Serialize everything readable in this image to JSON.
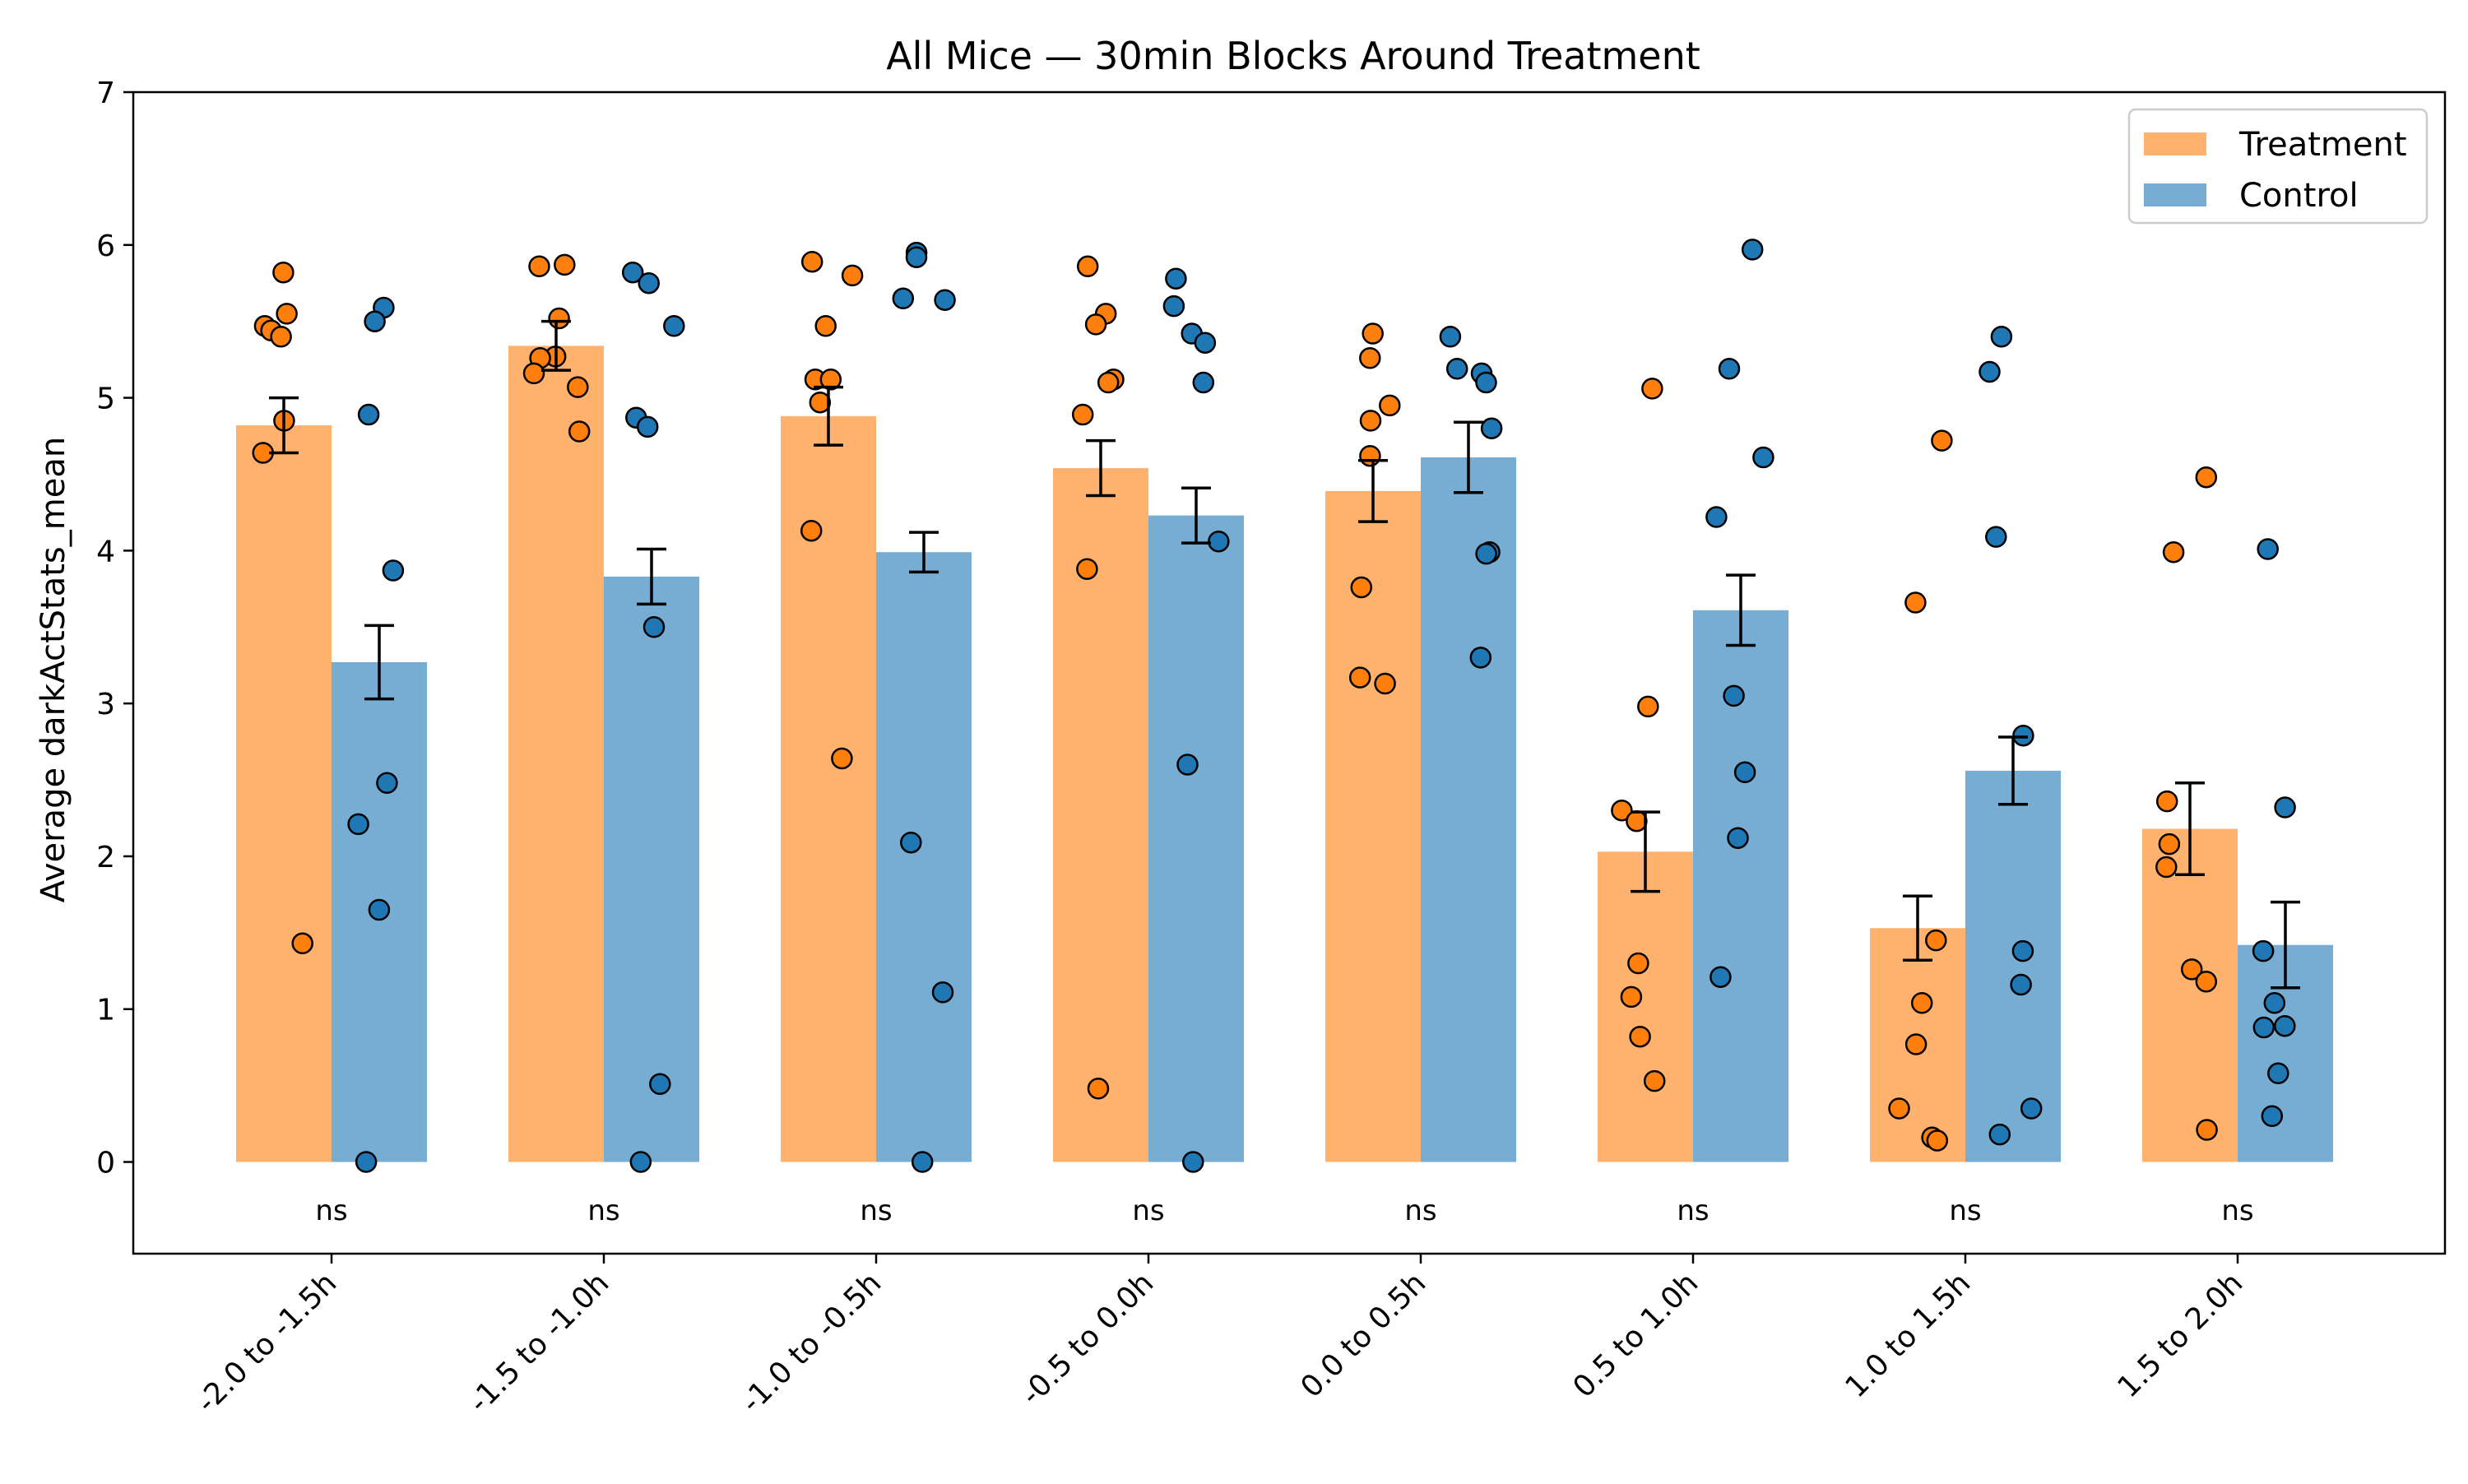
{
  "chart_data": {
    "type": "bar",
    "title": "All Mice — 30min Blocks Around Treatment",
    "xlabel": "",
    "ylabel": "Average darkActStats_mean",
    "ylim": [
      -0.6,
      7
    ],
    "yticks": [
      0,
      1,
      2,
      3,
      4,
      5,
      6,
      7
    ],
    "grid": false,
    "legend_position": "top-right",
    "categories": [
      "-2.0 to -1.5h",
      "-1.5 to -1.0h",
      "-1.0 to -0.5h",
      "-0.5 to 0.0h",
      "0.0 to 0.5h",
      "0.5 to 1.0h",
      "1.0 to 1.5h",
      "1.5 to 2.0h"
    ],
    "significance": [
      "ns",
      "ns",
      "ns",
      "ns",
      "ns",
      "ns",
      "ns",
      "ns"
    ],
    "series": [
      {
        "name": "Treatment",
        "color": "#ffb26e",
        "point_color": "#ff7f0e",
        "values": [
          4.82,
          5.34,
          4.88,
          4.54,
          4.39,
          2.03,
          1.53,
          2.18
        ],
        "sem": [
          0.18,
          0.16,
          0.19,
          0.18,
          0.2,
          0.26,
          0.21,
          0.3
        ],
        "points": [
          [
            5.82,
            5.55,
            5.47,
            5.44,
            5.4,
            4.85,
            4.64,
            1.43
          ],
          [
            5.87,
            5.86,
            5.52,
            5.27,
            5.26,
            5.16,
            5.07,
            4.78
          ],
          [
            5.89,
            5.8,
            5.47,
            5.12,
            5.12,
            4.97,
            4.13,
            2.64
          ],
          [
            5.86,
            5.55,
            5.48,
            5.12,
            5.1,
            4.89,
            3.88,
            0.48
          ],
          [
            5.42,
            5.26,
            4.95,
            4.85,
            4.62,
            3.76,
            3.17,
            3.13
          ],
          [
            5.06,
            2.98,
            2.3,
            2.23,
            1.3,
            1.08,
            0.82,
            0.53
          ],
          [
            4.72,
            3.66,
            1.45,
            1.04,
            0.77,
            0.35,
            0.16,
            0.14
          ],
          [
            4.48,
            3.99,
            2.36,
            2.08,
            1.93,
            1.26,
            1.18,
            0.21
          ]
        ]
      },
      {
        "name": "Control",
        "color": "#77acd3",
        "point_color": "#1f77b4",
        "values": [
          3.27,
          3.83,
          3.99,
          4.23,
          4.61,
          3.61,
          2.56,
          1.42
        ],
        "sem": [
          0.24,
          0.18,
          0.13,
          0.18,
          0.23,
          0.23,
          0.22,
          0.28
        ],
        "points": [
          [
            5.59,
            5.5,
            4.89,
            3.87,
            2.48,
            2.21,
            1.65,
            0.0
          ],
          [
            5.82,
            5.75,
            5.47,
            4.87,
            4.81,
            3.5,
            0.51,
            0.0
          ],
          [
            5.95,
            5.92,
            5.65,
            5.64,
            2.09,
            1.11,
            0.0
          ],
          [
            5.78,
            5.6,
            5.42,
            5.36,
            5.1,
            4.06,
            2.6,
            0.0
          ],
          [
            5.4,
            5.19,
            5.16,
            5.1,
            4.8,
            3.99,
            3.98,
            3.3
          ],
          [
            5.97,
            5.19,
            4.61,
            4.22,
            3.05,
            2.55,
            2.12,
            1.21
          ],
          [
            5.4,
            5.17,
            4.09,
            2.79,
            1.38,
            1.16,
            0.35,
            0.18
          ],
          [
            4.01,
            2.32,
            1.38,
            1.04,
            0.89,
            0.88,
            0.58,
            0.3
          ]
        ]
      }
    ]
  }
}
